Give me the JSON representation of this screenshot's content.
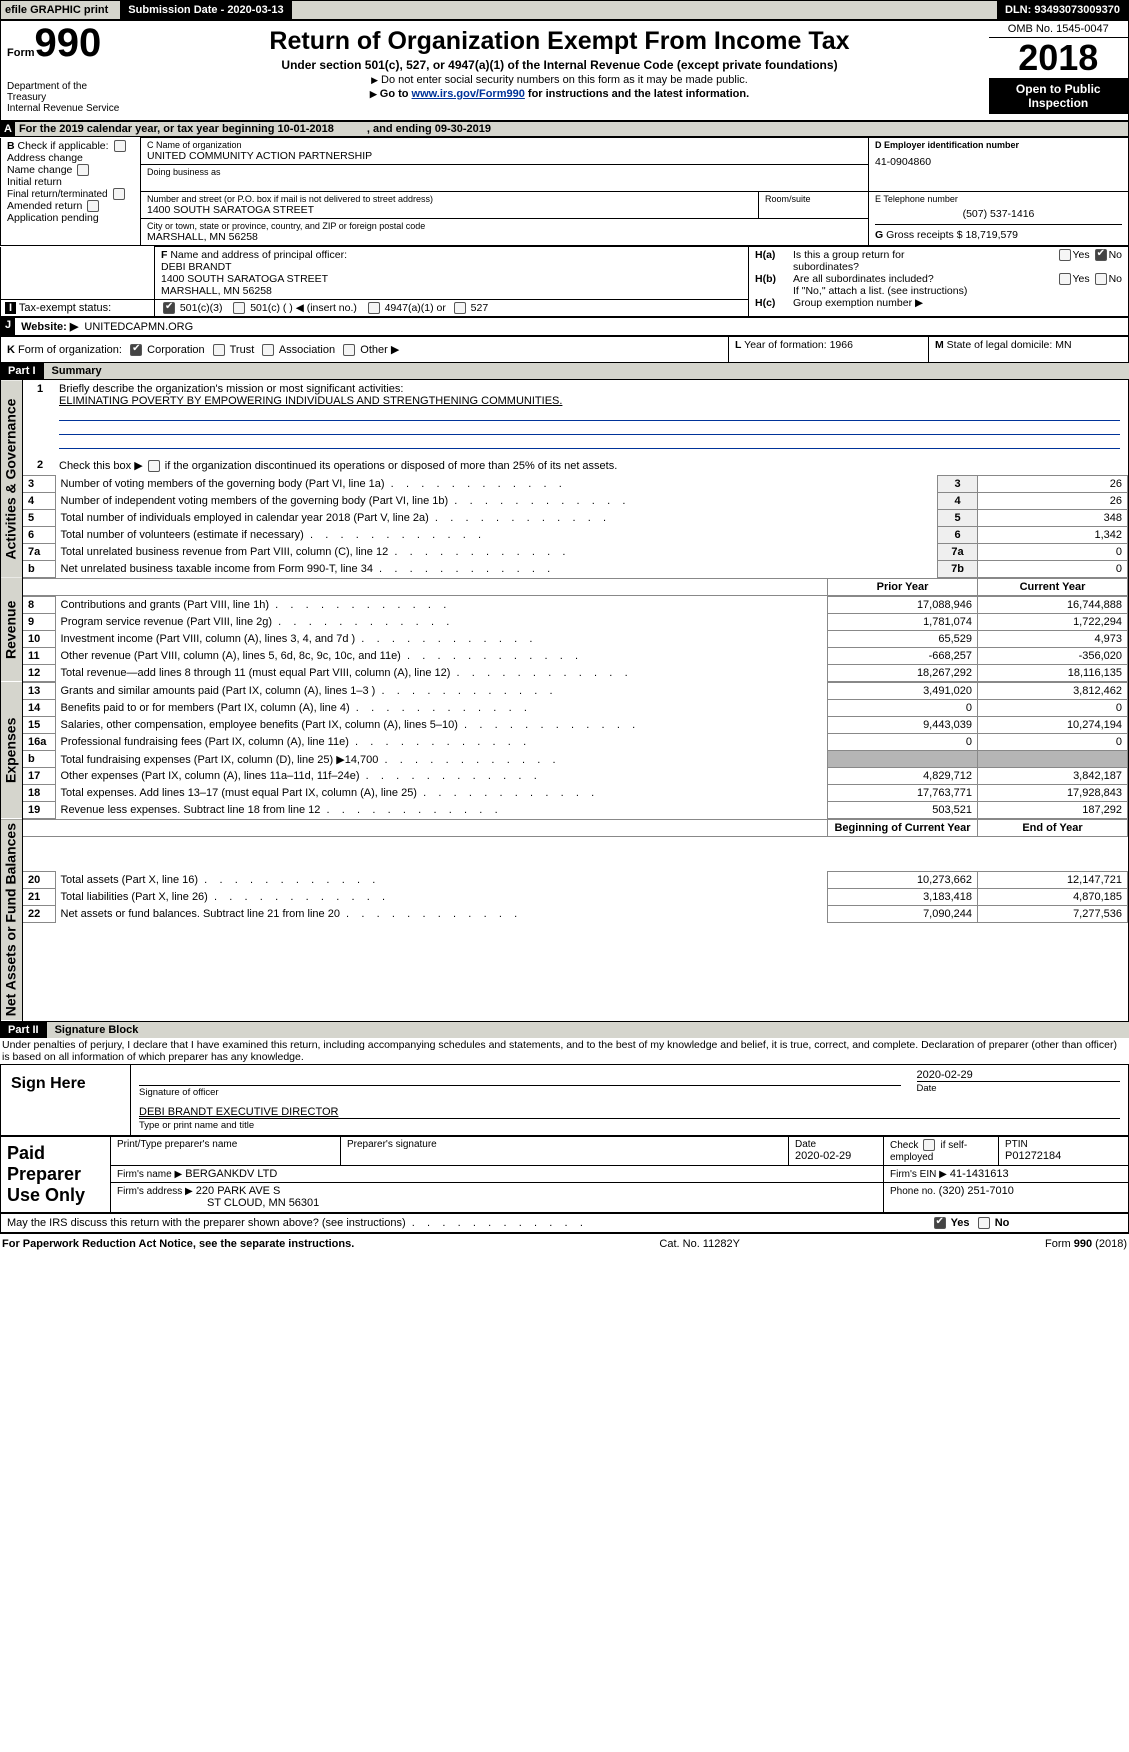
{
  "top": {
    "efile": "efile GRAPHIC print",
    "submission": "Submission Date - 2020-03-13",
    "dln": "DLN: 93493073009370"
  },
  "header": {
    "form_prefix": "Form",
    "form_num": "990",
    "dept1": "Department of the",
    "dept2": "Treasury",
    "dept3": "Internal Revenue Service",
    "title": "Return of Organization Exempt From Income Tax",
    "subtitle": "Under section 501(c), 527, or 4947(a)(1) of the Internal Revenue Code (except private foundations)",
    "note1": "Do not enter social security numbers on this form as it may be made public.",
    "note2_pre": "Go to ",
    "note2_link": "www.irs.gov/Form990",
    "note2_post": " for instructions and the latest information.",
    "omb": "OMB No. 1545-0047",
    "year": "2018",
    "open": "Open to Public Inspection"
  },
  "period": {
    "label_a": "A",
    "text": "For the 2019 calendar year, or tax year beginning 10-01-2018",
    "ending": ", and ending 09-30-2019"
  },
  "boxB": {
    "label": "B",
    "check_if": "Check if applicable:",
    "addr_change": "Address change",
    "name_change": "Name change",
    "init_return": "Initial return",
    "final_return": "Final return/terminated",
    "amended": "Amended return",
    "app_pending": "Application pending"
  },
  "boxC": {
    "label": "C Name of organization",
    "org_name": "UNITED COMMUNITY ACTION PARTNERSHIP",
    "dba_label": "Doing business as",
    "street_label": "Number and street (or P.O. box if mail is not delivered to street address)",
    "street": "1400 SOUTH SARATOGA STREET",
    "room_label": "Room/suite",
    "city_label": "City or town, state or province, country, and ZIP or foreign postal code",
    "city": "MARSHALL, MN  56258"
  },
  "boxD": {
    "label": "D Employer identification number",
    "ein": "41-0904860"
  },
  "boxE": {
    "label": "E Telephone number",
    "phone": "(507) 537-1416"
  },
  "boxG": {
    "label": "G",
    "text": "Gross receipts $ 18,719,579"
  },
  "boxF": {
    "label": "F",
    "text": "Name and address of principal officer:",
    "name": "DEBI BRANDT",
    "addr1": "1400 SOUTH SARATOGA STREET",
    "addr2": "MARSHALL, MN  56258"
  },
  "boxH": {
    "ha": "H(a)",
    "ha_text": "Is this a group return for",
    "sub": "subordinates?",
    "hb": "H(b)",
    "hb_text": "Are all subordinates included?",
    "hb_note": "If \"No,\" attach a list. (see instructions)",
    "hc": "H(c)",
    "hc_text": "Group exemption number ▶",
    "yes": "Yes",
    "no": "No"
  },
  "boxI": {
    "label": "I",
    "text": "Tax-exempt status:",
    "o1": "501(c)(3)",
    "o2": "501(c) (  ) ◀ (insert no.)",
    "o3": "4947(a)(1) or",
    "o4": "527"
  },
  "boxJ": {
    "label": "J",
    "text": "Website: ▶",
    "url": "UNITEDCAPMN.ORG"
  },
  "boxK": {
    "label": "K",
    "text": "Form of organization:",
    "corp": "Corporation",
    "trust": "Trust",
    "assoc": "Association",
    "other": "Other ▶"
  },
  "boxL": {
    "label": "L",
    "text": "Year of formation: 1966"
  },
  "boxM": {
    "label": "M",
    "text": "State of legal domicile: MN"
  },
  "partI": {
    "num": "Part I",
    "title": "Summary"
  },
  "gov": {
    "side": "Activities & Governance",
    "q1": "Briefly describe the organization's mission or most significant activities:",
    "q1a": "ELIMINATING POVERTY BY EMPOWERING INDIVIDUALS AND STRENGTHENING COMMUNITIES.",
    "q2": "Check this box ▶",
    "q2b": "if the organization discontinued its operations or disposed of more than 25% of its net assets.",
    "rows": [
      {
        "n": "3",
        "t": "Number of voting members of the governing body (Part VI, line 1a)",
        "rn": "3",
        "v": "26"
      },
      {
        "n": "4",
        "t": "Number of independent voting members of the governing body (Part VI, line 1b)",
        "rn": "4",
        "v": "26"
      },
      {
        "n": "5",
        "t": "Total number of individuals employed in calendar year 2018 (Part V, line 2a)",
        "rn": "5",
        "v": "348"
      },
      {
        "n": "6",
        "t": "Total number of volunteers (estimate if necessary)",
        "rn": "6",
        "v": "1,342"
      },
      {
        "n": "7a",
        "t": "Total unrelated business revenue from Part VIII, column (C), line 12",
        "rn": "7a",
        "v": "0"
      },
      {
        "n": "b",
        "t": "Net unrelated business taxable income from Form 990-T, line 34",
        "rn": "7b",
        "v": "0"
      }
    ]
  },
  "rev": {
    "side": "Revenue",
    "hdr_prior": "Prior Year",
    "hdr_curr": "Current Year",
    "rows": [
      {
        "n": "8",
        "t": "Contributions and grants (Part VIII, line 1h)",
        "p": "17,088,946",
        "c": "16,744,888"
      },
      {
        "n": "9",
        "t": "Program service revenue (Part VIII, line 2g)",
        "p": "1,781,074",
        "c": "1,722,294"
      },
      {
        "n": "10",
        "t": "Investment income (Part VIII, column (A), lines 3, 4, and 7d )",
        "p": "65,529",
        "c": "4,973"
      },
      {
        "n": "11",
        "t": "Other revenue (Part VIII, column (A), lines 5, 6d, 8c, 9c, 10c, and 11e)",
        "p": "-668,257",
        "c": "-356,020"
      },
      {
        "n": "12",
        "t": "Total revenue—add lines 8 through 11 (must equal Part VIII, column (A), line 12)",
        "p": "18,267,292",
        "c": "18,116,135"
      }
    ]
  },
  "exp": {
    "side": "Expenses",
    "rows": [
      {
        "n": "13",
        "t": "Grants and similar amounts paid (Part IX, column (A), lines 1–3 )",
        "p": "3,491,020",
        "c": "3,812,462"
      },
      {
        "n": "14",
        "t": "Benefits paid to or for members (Part IX, column (A), line 4)",
        "p": "0",
        "c": "0"
      },
      {
        "n": "15",
        "t": "Salaries, other compensation, employee benefits (Part IX, column (A), lines 5–10)",
        "p": "9,443,039",
        "c": "10,274,194"
      },
      {
        "n": "16a",
        "t": "Professional fundraising fees (Part IX, column (A), line 11e)",
        "p": "0",
        "c": "0"
      },
      {
        "n": "b",
        "t": "Total fundraising expenses (Part IX, column (D), line 25) ▶14,700",
        "p": "grey",
        "c": "grey"
      },
      {
        "n": "17",
        "t": "Other expenses (Part IX, column (A), lines 11a–11d, 11f–24e)",
        "p": "4,829,712",
        "c": "3,842,187"
      },
      {
        "n": "18",
        "t": "Total expenses. Add lines 13–17 (must equal Part IX, column (A), line 25)",
        "p": "17,763,771",
        "c": "17,928,843"
      },
      {
        "n": "19",
        "t": "Revenue less expenses. Subtract line 18 from line 12",
        "p": "503,521",
        "c": "187,292"
      }
    ]
  },
  "net": {
    "side": "Net Assets or Fund Balances",
    "hdr_begin": "Beginning of Current Year",
    "hdr_end": "End of Year",
    "rows": [
      {
        "n": "20",
        "t": "Total assets (Part X, line 16)",
        "p": "10,273,662",
        "c": "12,147,721"
      },
      {
        "n": "21",
        "t": "Total liabilities (Part X, line 26)",
        "p": "3,183,418",
        "c": "4,870,185"
      },
      {
        "n": "22",
        "t": "Net assets or fund balances. Subtract line 21 from line 20",
        "p": "7,090,244",
        "c": "7,277,536"
      }
    ]
  },
  "partII": {
    "num": "Part II",
    "title": "Signature Block"
  },
  "perjury": "Under penalties of perjury, I declare that I have examined this return, including accompanying schedules and statements, and to the best of my knowledge and belief, it is true, correct, and complete. Declaration of preparer (other than officer) is based on all information of which preparer has any knowledge.",
  "sign": {
    "here": "Sign Here",
    "date": "2020-02-29",
    "sig_of_officer": "Signature of officer",
    "date_lbl": "Date",
    "name": "DEBI BRANDT  EXECUTIVE DIRECTOR",
    "name_lbl": "Type or print name and title"
  },
  "paid": {
    "label": "Paid Preparer Use Only",
    "c1": "Print/Type preparer's name",
    "c2": "Preparer's signature",
    "c3": "Date",
    "c3v": "2020-02-29",
    "c4a": "Check",
    "c4b": "if self-employed",
    "c5": "PTIN",
    "c5v": "P01272184",
    "firm_name_lbl": "Firm's name    ▶",
    "firm_name": "BERGANKDV LTD",
    "firm_ein_lbl": "Firm's EIN ▶",
    "firm_ein": "41-1431613",
    "firm_addr_lbl": "Firm's address ▶",
    "firm_addr1": "220 PARK AVE S",
    "firm_addr2": "ST CLOUD, MN  56301",
    "phone_lbl": "Phone no.",
    "phone": "(320) 251-7010"
  },
  "discuss": {
    "text": "May the IRS discuss this return with the preparer shown above? (see instructions)",
    "yes": "Yes",
    "no": "No"
  },
  "footer": {
    "left": "For Paperwork Reduction Act Notice, see the separate instructions.",
    "mid": "Cat. No. 11282Y",
    "right": "Form 990 (2018)"
  }
}
